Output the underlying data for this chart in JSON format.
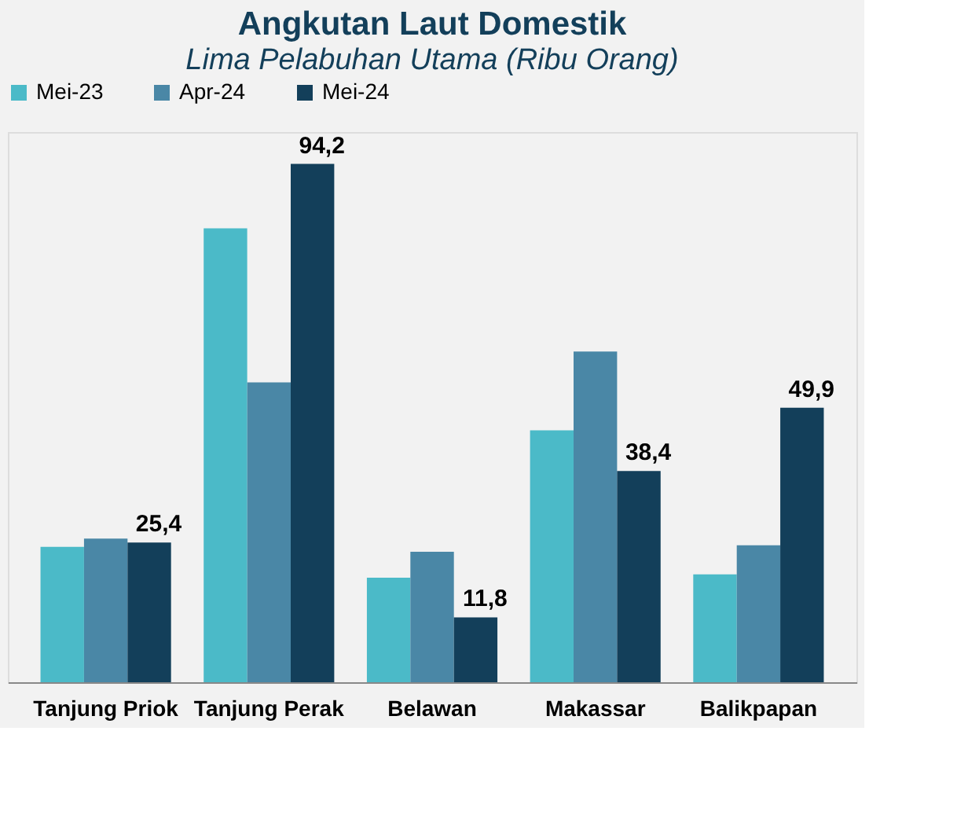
{
  "chart_data": {
    "type": "bar",
    "title": "Angkutan Laut Domestik",
    "subtitle": "Lima Pelabuhan Utama (Ribu Orang)",
    "categories": [
      "Tanjung Priok",
      "Tanjung Perak",
      "Belawan",
      "Makassar",
      "Balikpapan"
    ],
    "series": [
      {
        "name": "Mei-23",
        "color": "#4bbac8",
        "values": [
          24.6,
          82.5,
          19.0,
          45.8,
          19.6
        ]
      },
      {
        "name": "Apr-24",
        "color": "#4a87a6",
        "values": [
          26.1,
          54.5,
          23.7,
          60.1,
          24.9
        ]
      },
      {
        "name": "Mei-24",
        "color": "#133f5a",
        "values": [
          25.4,
          94.2,
          11.8,
          38.4,
          49.9
        ],
        "value_labels": [
          "25,4",
          "94,2",
          "11,8",
          "38,4",
          "49,9"
        ]
      }
    ],
    "ylim": [
      0,
      100
    ],
    "legend": "top",
    "grid": false,
    "tick_labels": "x"
  }
}
